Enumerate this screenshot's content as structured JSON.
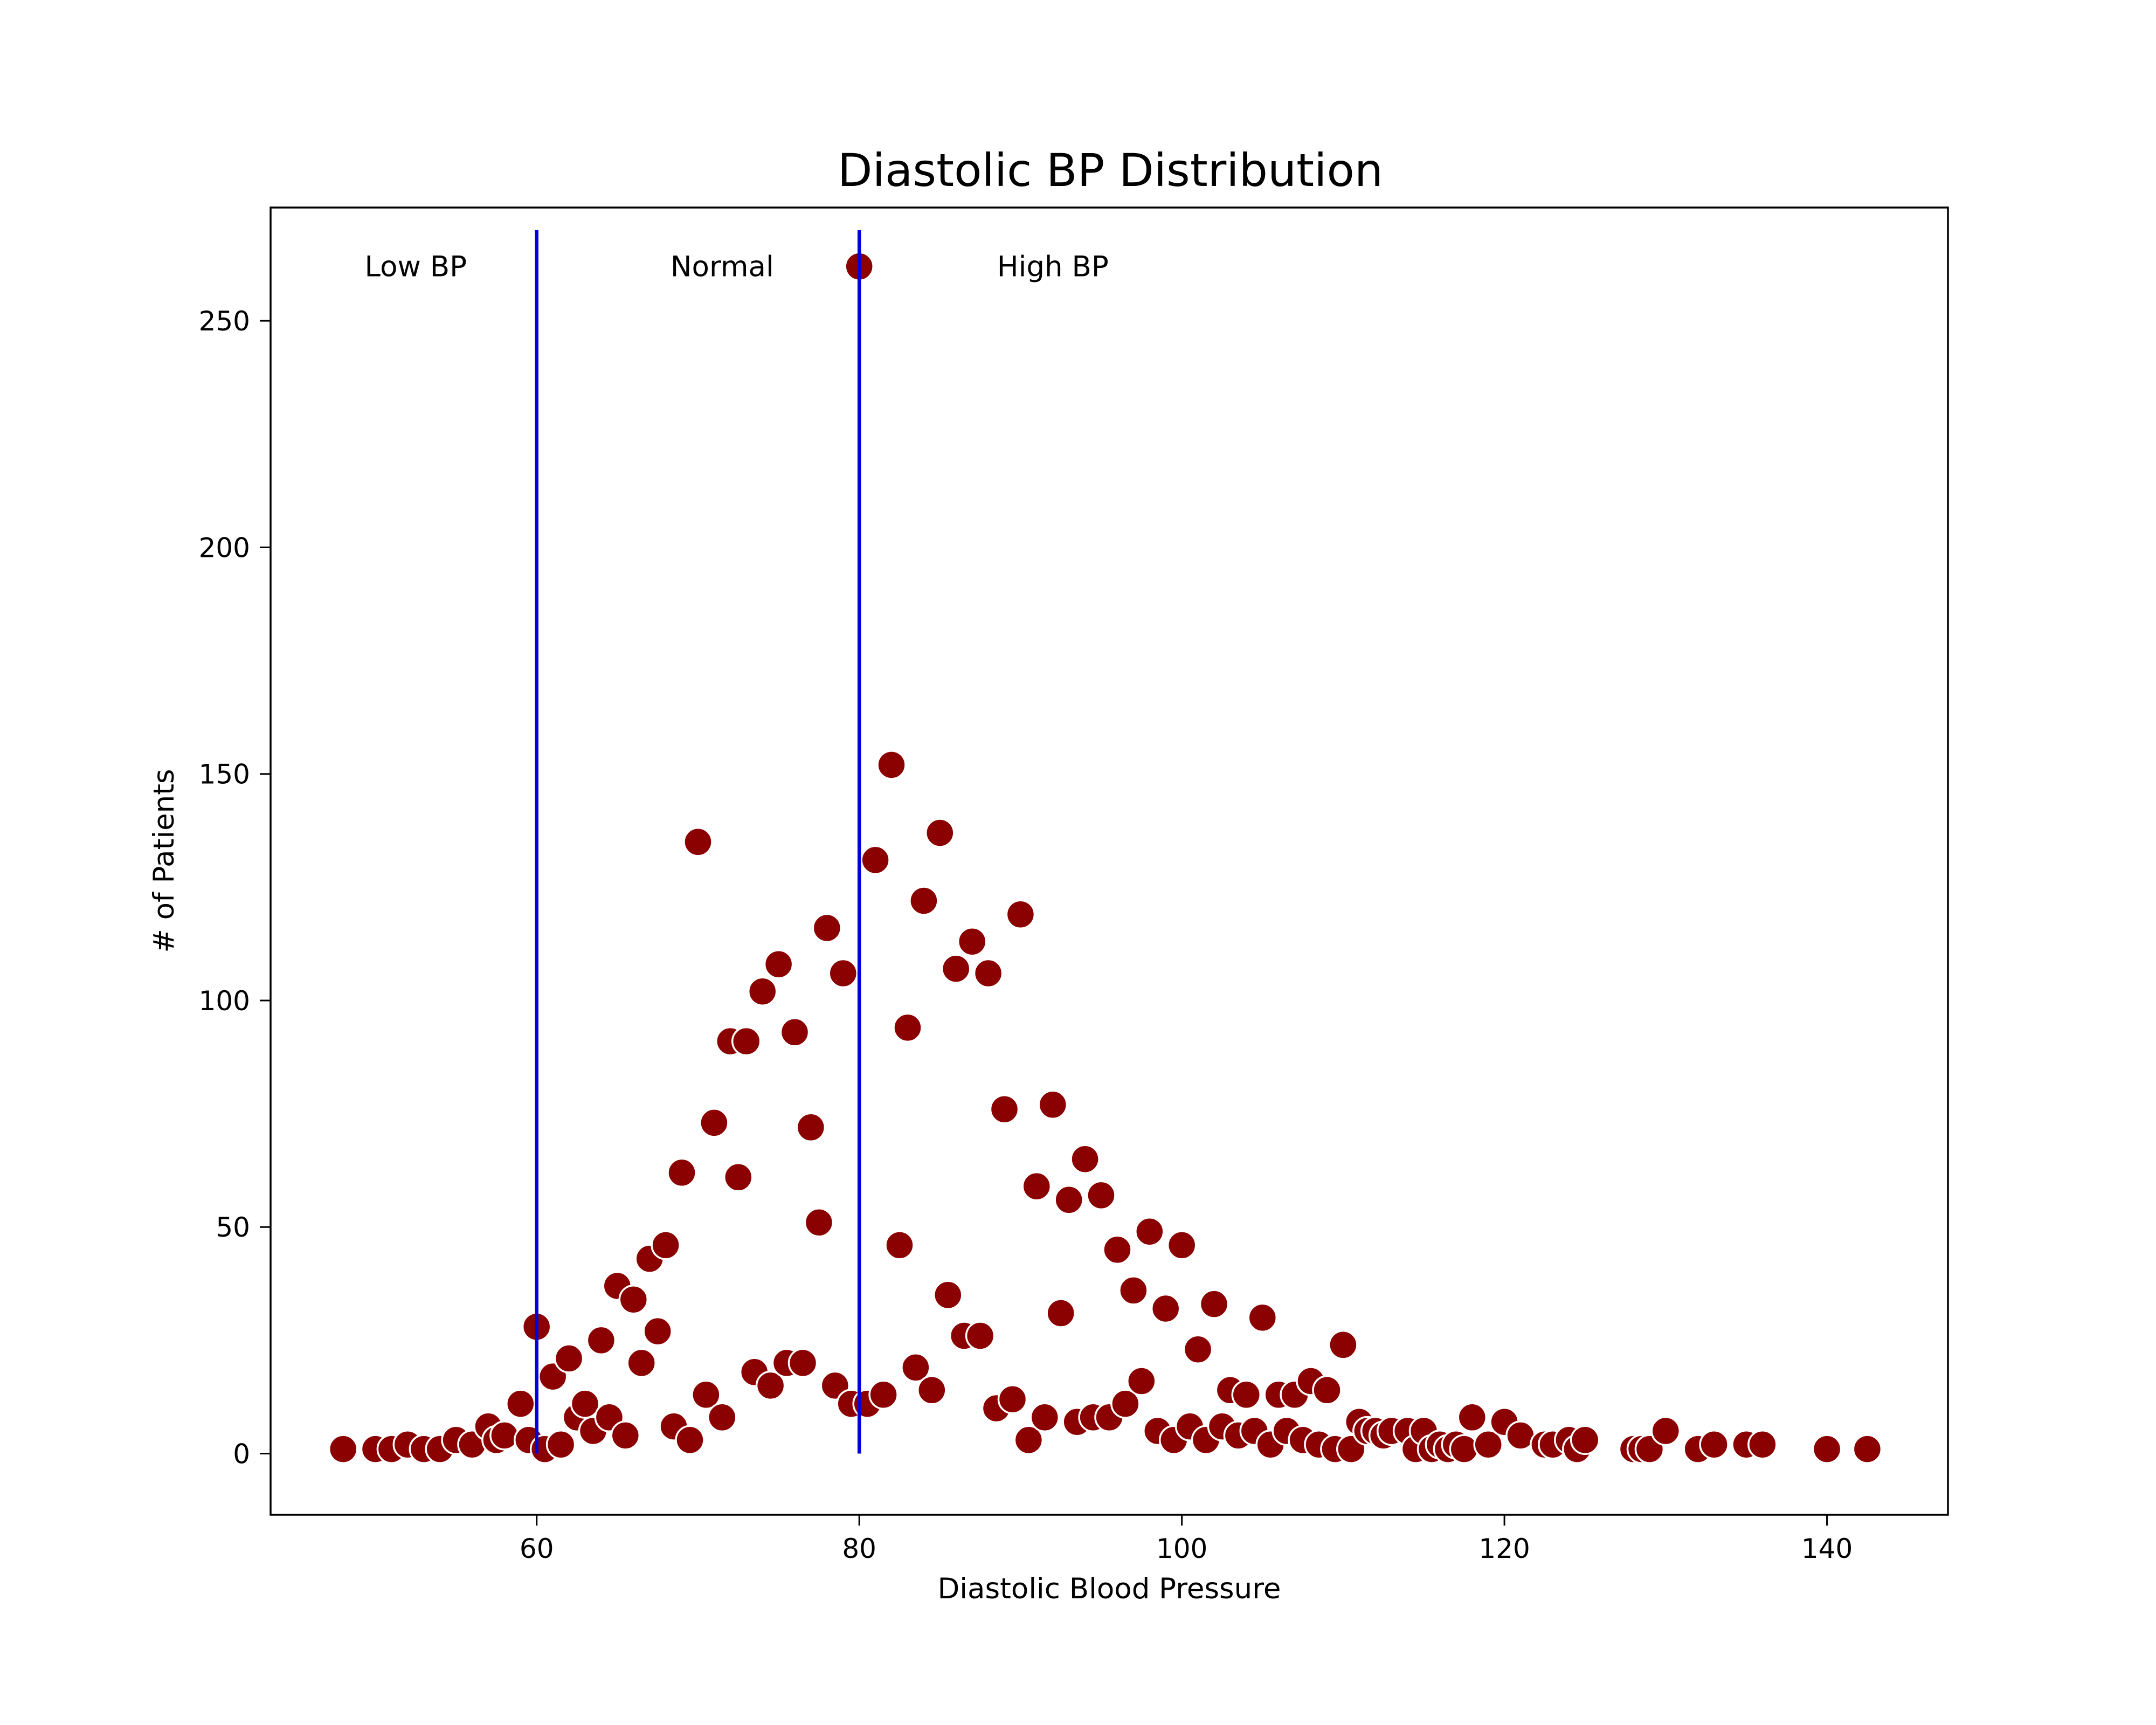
{
  "chart_data": {
    "type": "scatter",
    "title": "Diastolic BP Distribution",
    "xlabel": "Diastolic Blood Pressure",
    "ylabel": "# of Patients",
    "xlim": [
      43.5,
      147.5
    ],
    "ylim": [
      -13.5,
      275
    ],
    "xticks": [
      60,
      80,
      100,
      120,
      140
    ],
    "yticks": [
      0,
      50,
      100,
      150,
      200,
      250
    ],
    "grid": false,
    "point_color": "#8b0000",
    "line_color": "#0000dd",
    "vertical_lines": [
      60,
      80
    ],
    "annotations": [
      {
        "text": "Low BP",
        "x": 52.5,
        "y": 262
      },
      {
        "text": "Normal",
        "x": 71.5,
        "y": 262
      },
      {
        "text": "High BP",
        "x": 92,
        "y": 262
      }
    ],
    "points": [
      [
        48,
        1
      ],
      [
        50,
        1
      ],
      [
        51,
        1
      ],
      [
        52,
        2
      ],
      [
        53,
        1
      ],
      [
        54,
        1
      ],
      [
        55,
        3
      ],
      [
        56,
        2
      ],
      [
        57,
        6
      ],
      [
        57.5,
        3
      ],
      [
        58,
        4
      ],
      [
        59,
        11
      ],
      [
        59.5,
        3
      ],
      [
        60,
        28
      ],
      [
        60.5,
        1
      ],
      [
        61,
        17
      ],
      [
        61.5,
        2
      ],
      [
        62,
        21
      ],
      [
        62.5,
        8
      ],
      [
        63,
        11
      ],
      [
        63.5,
        5
      ],
      [
        64,
        25
      ],
      [
        64.5,
        8
      ],
      [
        65,
        37
      ],
      [
        65.5,
        4
      ],
      [
        66,
        34
      ],
      [
        66.5,
        20
      ],
      [
        67,
        43
      ],
      [
        67.5,
        27
      ],
      [
        68,
        46
      ],
      [
        68.5,
        6
      ],
      [
        69,
        62
      ],
      [
        69.5,
        3
      ],
      [
        70,
        135
      ],
      [
        70.5,
        13
      ],
      [
        71,
        73
      ],
      [
        71.5,
        8
      ],
      [
        72,
        91
      ],
      [
        72.5,
        61
      ],
      [
        73,
        91
      ],
      [
        73.5,
        18
      ],
      [
        74,
        102
      ],
      [
        74.5,
        15
      ],
      [
        75,
        108
      ],
      [
        75.5,
        20
      ],
      [
        76,
        93
      ],
      [
        76.5,
        20
      ],
      [
        77,
        72
      ],
      [
        77.5,
        51
      ],
      [
        78,
        116
      ],
      [
        78.5,
        15
      ],
      [
        79,
        106
      ],
      [
        79.5,
        11
      ],
      [
        80,
        262
      ],
      [
        80.5,
        11
      ],
      [
        81,
        131
      ],
      [
        81.5,
        13
      ],
      [
        82,
        152
      ],
      [
        82.5,
        46
      ],
      [
        83,
        94
      ],
      [
        83.5,
        19
      ],
      [
        84,
        122
      ],
      [
        84.5,
        14
      ],
      [
        85,
        137
      ],
      [
        85.5,
        35
      ],
      [
        86,
        107
      ],
      [
        86.5,
        26
      ],
      [
        87,
        113
      ],
      [
        87.5,
        26
      ],
      [
        88,
        106
      ],
      [
        88.5,
        10
      ],
      [
        89,
        76
      ],
      [
        89.5,
        12
      ],
      [
        90,
        119
      ],
      [
        90.5,
        3
      ],
      [
        91,
        59
      ],
      [
        91.5,
        8
      ],
      [
        92,
        77
      ],
      [
        92.5,
        31
      ],
      [
        93,
        56
      ],
      [
        93.5,
        7
      ],
      [
        94,
        65
      ],
      [
        94.5,
        8
      ],
      [
        95,
        57
      ],
      [
        95.5,
        8
      ],
      [
        96,
        45
      ],
      [
        96.5,
        11
      ],
      [
        97,
        36
      ],
      [
        97.5,
        16
      ],
      [
        98,
        49
      ],
      [
        98.5,
        5
      ],
      [
        99,
        32
      ],
      [
        99.5,
        3
      ],
      [
        100,
        46
      ],
      [
        100.5,
        6
      ],
      [
        101,
        23
      ],
      [
        101.5,
        3
      ],
      [
        102,
        33
      ],
      [
        102.5,
        6
      ],
      [
        103,
        14
      ],
      [
        103.5,
        4
      ],
      [
        104,
        13
      ],
      [
        104.5,
        5
      ],
      [
        105,
        30
      ],
      [
        105.5,
        2
      ],
      [
        106,
        13
      ],
      [
        106.5,
        5
      ],
      [
        107,
        13
      ],
      [
        107.5,
        3
      ],
      [
        108,
        16
      ],
      [
        108.5,
        2
      ],
      [
        109,
        14
      ],
      [
        109.5,
        1
      ],
      [
        110,
        24
      ],
      [
        110.5,
        1
      ],
      [
        111,
        7
      ],
      [
        111.5,
        5
      ],
      [
        112,
        5
      ],
      [
        112.5,
        4
      ],
      [
        113,
        5
      ],
      [
        114,
        5
      ],
      [
        114.5,
        1
      ],
      [
        115,
        5
      ],
      [
        115.5,
        1
      ],
      [
        116,
        2
      ],
      [
        116.5,
        1
      ],
      [
        117,
        2
      ],
      [
        117.5,
        1
      ],
      [
        118,
        8
      ],
      [
        119,
        2
      ],
      [
        120,
        7
      ],
      [
        121,
        4
      ],
      [
        122.5,
        2
      ],
      [
        123,
        2
      ],
      [
        124,
        3
      ],
      [
        124.5,
        1
      ],
      [
        125,
        3
      ],
      [
        128,
        1
      ],
      [
        128.5,
        1
      ],
      [
        129,
        1
      ],
      [
        130,
        5
      ],
      [
        132,
        1
      ],
      [
        133,
        2
      ],
      [
        135,
        2
      ],
      [
        136,
        2
      ],
      [
        140,
        1
      ],
      [
        142.5,
        1
      ]
    ]
  }
}
